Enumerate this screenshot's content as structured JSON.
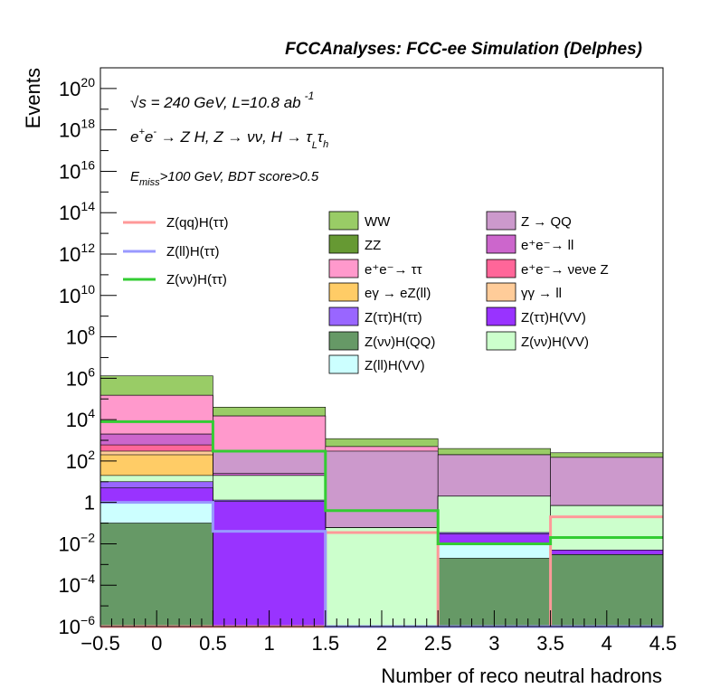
{
  "chart_data": {
    "type": "stacked-histogram",
    "title": "FCCAnalyses: FCC-ee Simulation (Delphes)",
    "annotations": [
      "√s = 240 GeV, L=10.8 ab⁻¹",
      "e⁺e⁻ → Z H, Z → νν, H → τLτh",
      "Emiss>100 GeV, BDT score>0.5"
    ],
    "xlabel": "Number of reco neutral hadrons",
    "ylabel": "Events",
    "xlim": [
      -0.5,
      4.5
    ],
    "ylim": [
      1e-06,
      1e+21
    ],
    "yscale": "log",
    "x_edges": [
      -0.5,
      0.5,
      1.5,
      2.5,
      3.5,
      4.5
    ],
    "x_ticks": [
      {
        "value": -0.5,
        "label": "−0.5"
      },
      {
        "value": 0,
        "label": "0"
      },
      {
        "value": 0.5,
        "label": "0.5"
      },
      {
        "value": 1,
        "label": "1"
      },
      {
        "value": 1.5,
        "label": "1.5"
      },
      {
        "value": 2,
        "label": "2"
      },
      {
        "value": 2.5,
        "label": "2.5"
      },
      {
        "value": 3,
        "label": "3"
      },
      {
        "value": 3.5,
        "label": "3.5"
      },
      {
        "value": 4,
        "label": "4"
      },
      {
        "value": 4.5,
        "label": "4.5"
      }
    ],
    "y_ticks": [
      {
        "exp": -6,
        "label": "10",
        "sup": "−6"
      },
      {
        "exp": -4,
        "label": "10",
        "sup": "−4"
      },
      {
        "exp": -2,
        "label": "10",
        "sup": "−2"
      },
      {
        "exp": 0,
        "label": "1",
        "sup": ""
      },
      {
        "exp": 2,
        "label": "10",
        "sup": "2"
      },
      {
        "exp": 4,
        "label": "10",
        "sup": "4"
      },
      {
        "exp": 6,
        "label": "10",
        "sup": "6"
      },
      {
        "exp": 8,
        "label": "10",
        "sup": "8"
      },
      {
        "exp": 10,
        "label": "10",
        "sup": "10"
      },
      {
        "exp": 12,
        "label": "10",
        "sup": "12"
      },
      {
        "exp": 14,
        "label": "10",
        "sup": "14"
      },
      {
        "exp": 16,
        "label": "10",
        "sup": "16"
      },
      {
        "exp": 18,
        "label": "10",
        "sup": "18"
      },
      {
        "exp": 20,
        "label": "10",
        "sup": "20"
      }
    ],
    "stack_levels": [
      {
        "name": "Z(νν)H(QQ)",
        "color": "#669966",
        "values": [
          0.1,
          1e-06,
          1e-06,
          0.002,
          0.003
        ]
      },
      {
        "name": "Z(ll)H(VV)",
        "color": "#ccffff",
        "values": [
          1,
          1e-06,
          1e-06,
          0.01,
          0.003
        ]
      },
      {
        "name": "Z(ττ)H(VV)",
        "color": "#9933ff",
        "values": [
          5,
          1.1,
          1e-06,
          0.03,
          0.005
        ]
      },
      {
        "name": "Z(ττ)H(ττ)",
        "color": "#9966ff",
        "values": [
          10,
          1.3,
          1e-06,
          0.035,
          0.005
        ]
      },
      {
        "name": "Z(νν)H(VV)",
        "color": "#ccffcc",
        "values": [
          20,
          20,
          0.06,
          2,
          0.7
        ]
      },
      {
        "name": "eγ → eZ(ll)",
        "color": "#ffcc66",
        "values": [
          200,
          20,
          0.06,
          2,
          0.7
        ]
      },
      {
        "name": "γγ → ll",
        "color": "#ffcc99",
        "values": [
          300,
          20,
          0.06,
          2,
          0.7
        ]
      },
      {
        "name": "e⁺e⁻→ νeνe Z",
        "color": "#ff6699",
        "values": [
          600,
          20,
          0.06,
          2,
          0.7
        ]
      },
      {
        "name": "e⁺e⁻→ ll",
        "color": "#cc66cc",
        "values": [
          2000,
          25,
          0.06,
          2,
          0.7
        ]
      },
      {
        "name": "Z → QQ",
        "color": "#cc99cc",
        "values": [
          2000,
          300,
          300,
          200,
          150
        ]
      },
      {
        "name": "e⁺e⁻→ ττ",
        "color": "#ff99cc",
        "values": [
          150000,
          15000,
          500,
          200,
          150
        ]
      },
      {
        "name": "ZZ",
        "color": "#669933",
        "values": [
          150000,
          15000,
          500,
          200,
          150
        ]
      },
      {
        "name": "WW",
        "color": "#99cc66",
        "values": [
          1300000,
          40000,
          1200,
          400,
          250
        ]
      }
    ],
    "signal_lines": [
      {
        "name": "Z(qq)H(ττ)",
        "color": "#ff9999",
        "values": [
          1e-06,
          1e-06,
          0.035,
          1e-06,
          0.2
        ]
      },
      {
        "name": "Z(ll)H(ττ)",
        "color": "#9999ff",
        "values": [
          1,
          0.04,
          1e-06,
          1e-06,
          1e-06
        ]
      },
      {
        "name": "Z(νν)H(ττ)",
        "color": "#33cc33",
        "values": [
          8000,
          300,
          0.4,
          0.01,
          0.02
        ]
      }
    ],
    "legend": {
      "signals": [
        "Z(qq)H(ττ)",
        "Z(ll)H(ττ)",
        "Z(νν)H(ττ)"
      ],
      "backgrounds_col1": [
        "WW",
        "ZZ",
        "e⁺e⁻→ ττ",
        "eγ → eZ(ll)",
        "Z(ττ)H(ττ)",
        "Z(νν)H(QQ)",
        "Z(ll)H(VV)"
      ],
      "backgrounds_col2": [
        "Z → QQ",
        "e⁺e⁻→ ll",
        "e⁺e⁻→ νeνe Z",
        "γγ → ll",
        "Z(ττ)H(VV)",
        "Z(νν)H(VV)"
      ],
      "placement": "upper"
    }
  }
}
